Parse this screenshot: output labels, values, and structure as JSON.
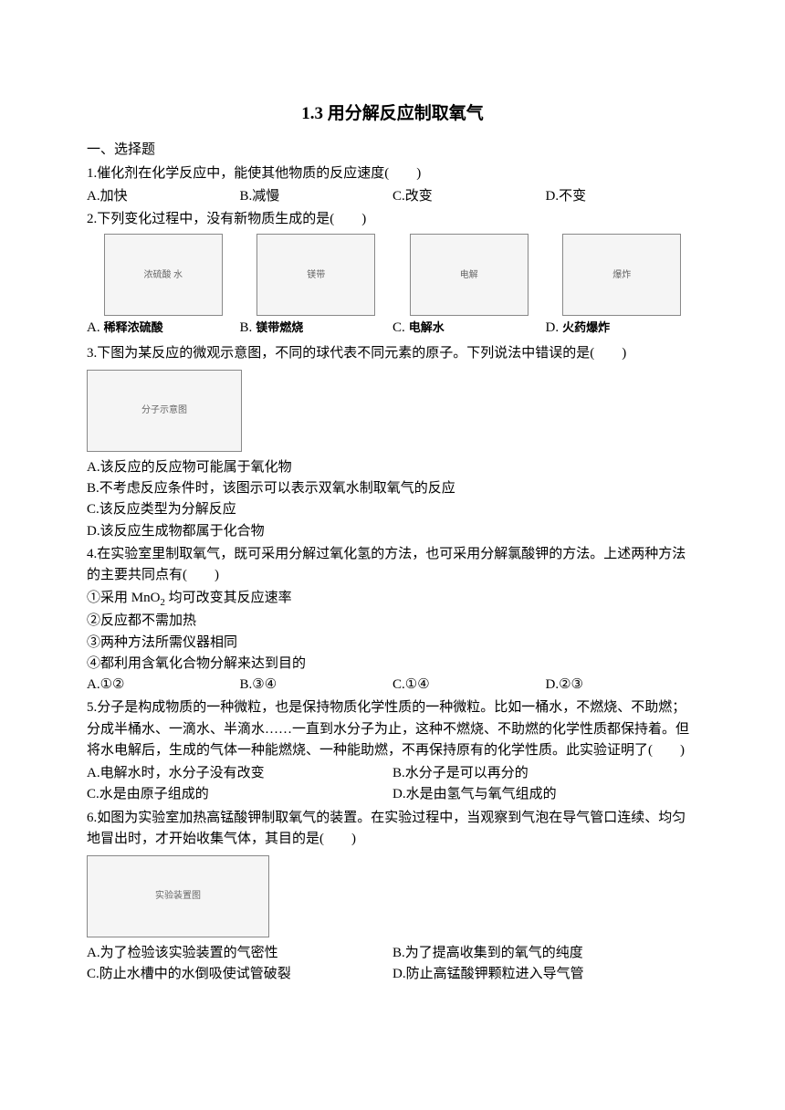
{
  "title": "1.3 用分解反应制取氧气",
  "section1": "一、选择题",
  "q1": {
    "text": "1.催化剂在化学反应中，能使其他物质的反应速度(　　)",
    "a": "A.加快",
    "b": "B.减慢",
    "c": "C.改变",
    "d": "D.不变"
  },
  "q2": {
    "text": "2.下列变化过程中，没有新物质生成的是(　　)",
    "img_a": "稀释浓硫酸",
    "img_b": "镁带燃烧",
    "img_c": "电解水",
    "img_d": "火药爆炸",
    "la": "A.",
    "lb": "B.",
    "lc": "C.",
    "ld": "D.",
    "ph_a": "浓硫酸 水",
    "ph_b": "镁带",
    "ph_c": "电解",
    "ph_d": "爆炸"
  },
  "q3": {
    "text": "3.下图为某反应的微观示意图，不同的球代表不同元素的原子。下列说法中错误的是(　　)",
    "ph": "分子示意图",
    "a": "A.该反应的反应物可能属于氧化物",
    "b": "B.不考虑反应条件时，该图示可以表示双氧水制取氧气的反应",
    "c": "C.该反应类型为分解反应",
    "d": "D.该反应生成物都属于化合物"
  },
  "q4": {
    "text": "4.在实验室里制取氧气，既可采用分解过氧化氢的方法，也可采用分解氯酸钾的方法。上述两种方法的主要共同点有(　　)",
    "i1_pre": "①采用 MnO",
    "i1_sub": "2",
    "i1_post": " 均可改变其反应速率",
    "i2": "②反应都不需加热",
    "i3": "③两种方法所需仪器相同",
    "i4": "④都利用含氧化合物分解来达到目的",
    "a": "A.①②",
    "b": "B.③④",
    "c": "C.①④",
    "d": "D.②③"
  },
  "q5": {
    "text": "5.分子是构成物质的一种微粒，也是保持物质化学性质的一种微粒。比如一桶水，不燃烧、不助燃；分成半桶水、一滴水、半滴水……一直到水分子为止，这种不燃烧、不助燃的化学性质都保持着。但将水电解后，生成的气体一种能燃烧、一种能助燃，不再保持原有的化学性质。此实验证明了(　　)",
    "a": "A.电解水时，水分子没有改变",
    "b": "B.水分子是可以再分的",
    "c": "C.水是由原子组成的",
    "d": "D.水是由氢气与氧气组成的"
  },
  "q6": {
    "text": "6.如图为实验室加热高锰酸钾制取氧气的装置。在实验过程中，当观察到气泡在导气管口连续、均匀地冒出时，才开始收集气体，其目的是(　　)",
    "ph": "实验装置图",
    "a": "A.为了检验该实验装置的气密性",
    "b": "B.为了提高收集到的氧气的纯度",
    "c": "C.防止水槽中的水倒吸使试管破裂",
    "d": "D.防止高锰酸钾颗粒进入导气管"
  }
}
